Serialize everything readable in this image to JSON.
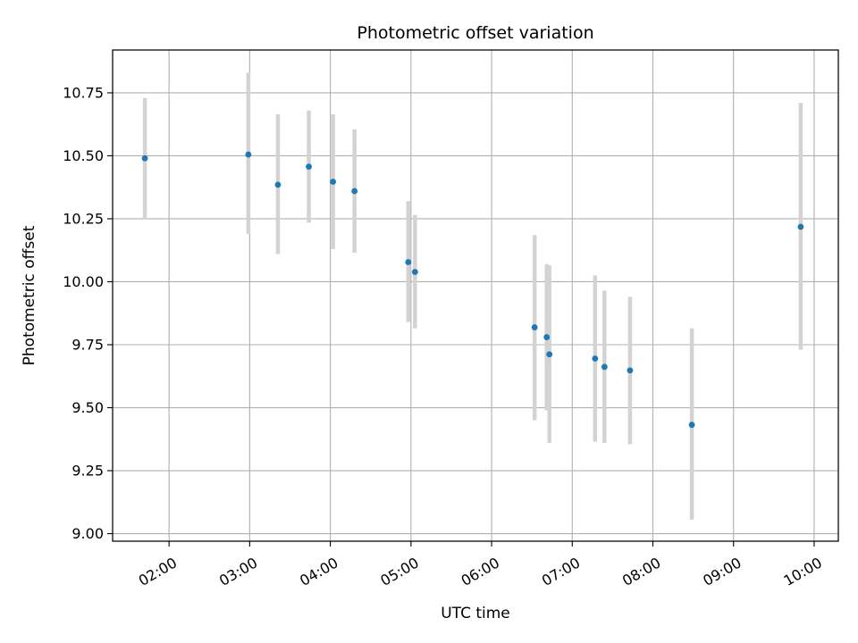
{
  "chart_data": {
    "type": "scatter",
    "title": "Photometric offset variation",
    "xlabel": "UTC time",
    "ylabel": "Photometric offset",
    "x_type": "time",
    "xlim": [
      "01:18",
      "10:18"
    ],
    "ylim": [
      8.97,
      10.92
    ],
    "grid": true,
    "x_ticks": [
      "02:00",
      "03:00",
      "04:00",
      "05:00",
      "06:00",
      "07:00",
      "08:00",
      "09:00",
      "10:00"
    ],
    "y_ticks": [
      "9.00",
      "9.25",
      "9.50",
      "9.75",
      "10.00",
      "10.25",
      "10.50",
      "10.75"
    ],
    "colors": {
      "point": "#1f77b4",
      "errorbar": "#d3d3d3",
      "grid": "#b0b0b0"
    },
    "series": [
      {
        "points": [
          {
            "x": "01:42",
            "y": 10.49,
            "ylow": 10.25,
            "yhigh": 10.73
          },
          {
            "x": "02:59",
            "y": 10.505,
            "ylow": 10.19,
            "yhigh": 10.83
          },
          {
            "x": "03:21",
            "y": 10.385,
            "ylow": 10.11,
            "yhigh": 10.665
          },
          {
            "x": "03:44",
            "y": 10.457,
            "ylow": 10.235,
            "yhigh": 10.68
          },
          {
            "x": "04:02",
            "y": 10.397,
            "ylow": 10.13,
            "yhigh": 10.665
          },
          {
            "x": "04:18",
            "y": 10.36,
            "ylow": 10.115,
            "yhigh": 10.605
          },
          {
            "x": "04:58",
            "y": 10.078,
            "ylow": 9.84,
            "yhigh": 10.32
          },
          {
            "x": "05:03",
            "y": 10.039,
            "ylow": 9.815,
            "yhigh": 10.265
          },
          {
            "x": "06:32",
            "y": 9.819,
            "ylow": 9.45,
            "yhigh": 10.185
          },
          {
            "x": "06:41",
            "y": 9.78,
            "ylow": 9.49,
            "yhigh": 10.07
          },
          {
            "x": "06:43",
            "y": 9.712,
            "ylow": 9.36,
            "yhigh": 10.065
          },
          {
            "x": "07:17",
            "y": 9.695,
            "ylow": 9.365,
            "yhigh": 10.025
          },
          {
            "x": "07:24",
            "y": 9.662,
            "ylow": 9.36,
            "yhigh": 9.965
          },
          {
            "x": "07:43",
            "y": 9.648,
            "ylow": 9.355,
            "yhigh": 9.94
          },
          {
            "x": "08:29",
            "y": 9.432,
            "ylow": 9.055,
            "yhigh": 9.815
          },
          {
            "x": "09:50",
            "y": 10.218,
            "ylow": 9.73,
            "yhigh": 10.71
          }
        ]
      }
    ]
  }
}
